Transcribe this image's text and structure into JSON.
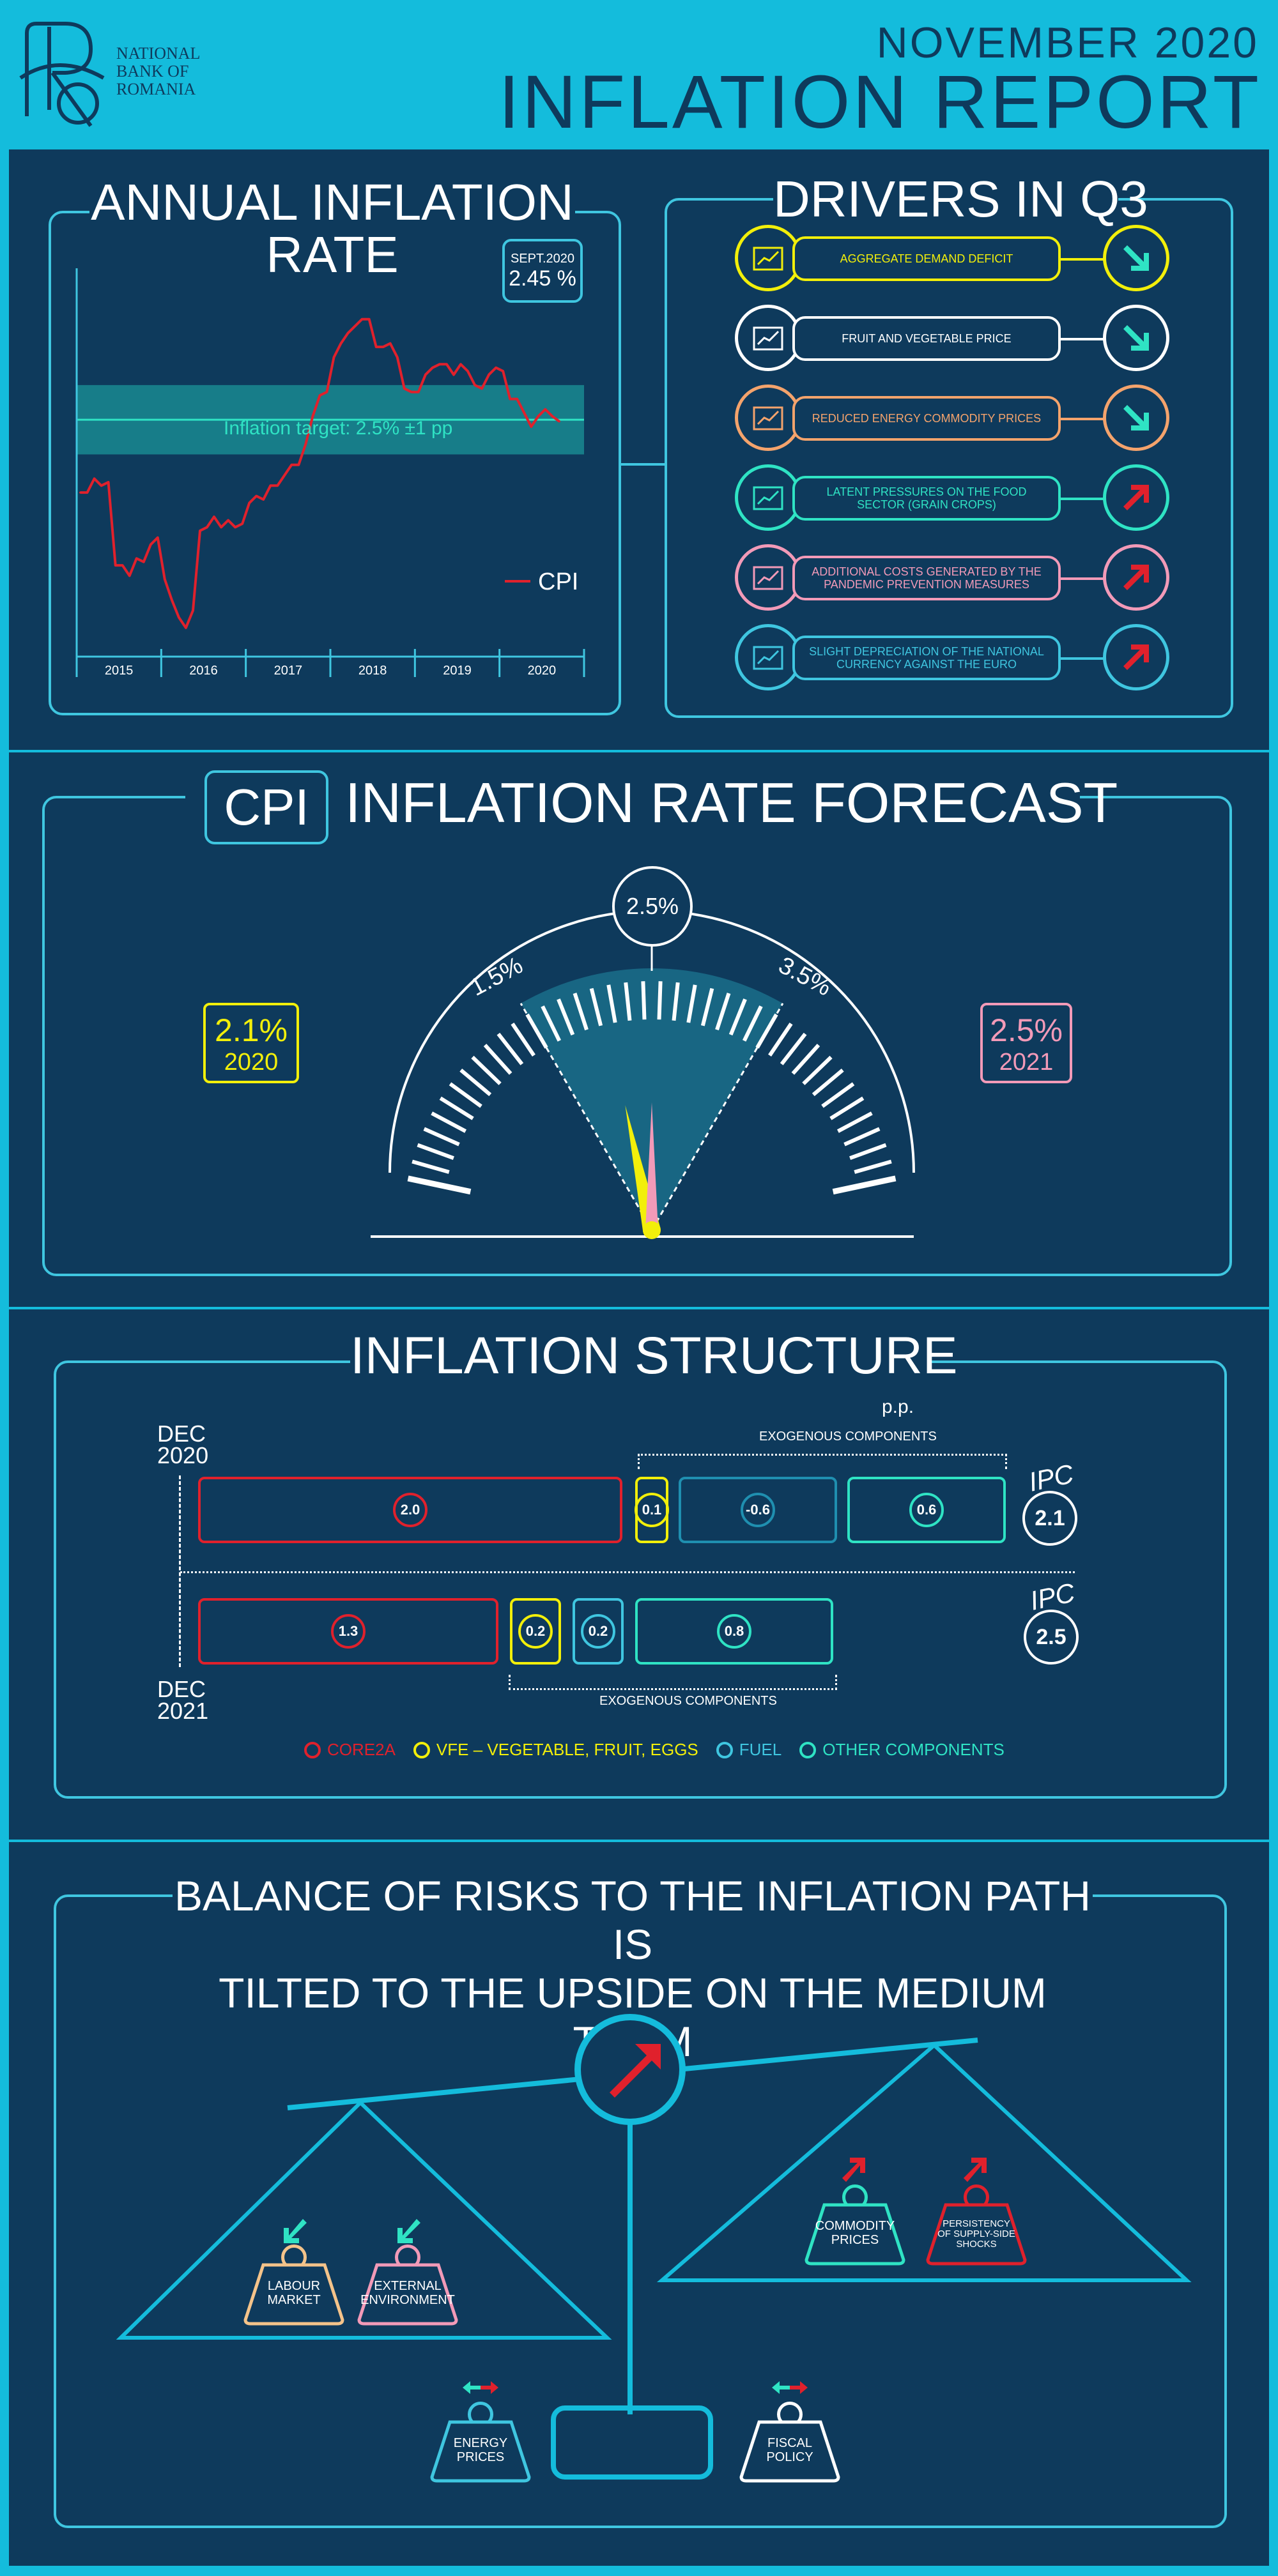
{
  "header": {
    "bank_name": [
      "NATIONAL",
      "BANK OF",
      "ROMANIA"
    ],
    "date": "NOVEMBER 2020",
    "title": "INFLATION REPORT"
  },
  "annual": {
    "title": [
      "ANNUAL INFLATION",
      "RATE"
    ],
    "badge_label": "SEPT.2020",
    "badge_value": "2.45 %",
    "target_label": "Inflation target: 2.5% ±1 pp",
    "legend": "CPI"
  },
  "chart_data": {
    "type": "line",
    "title": "ANNUAL INFLATION RATE",
    "xlabel": "",
    "ylabel": "",
    "x_ticks": [
      "2015",
      "2016",
      "2017",
      "2018",
      "2019",
      "2020"
    ],
    "series": [
      {
        "name": "CPI",
        "values": [
          [
            "2015-01",
            0.4
          ],
          [
            "2015-02",
            0.4
          ],
          [
            "2015-03",
            0.8
          ],
          [
            "2015-04",
            0.6
          ],
          [
            "2015-05",
            0.7
          ],
          [
            "2015-06",
            -1.7
          ],
          [
            "2015-07",
            -1.7
          ],
          [
            "2015-08",
            -2.0
          ],
          [
            "2015-09",
            -1.5
          ],
          [
            "2015-10",
            -1.6
          ],
          [
            "2015-11",
            -1.1
          ],
          [
            "2015-12",
            -0.9
          ],
          [
            "2016-01",
            -2.1
          ],
          [
            "2016-02",
            -2.7
          ],
          [
            "2016-03",
            -3.2
          ],
          [
            "2016-04",
            -3.5
          ],
          [
            "2016-05",
            -3.0
          ],
          [
            "2016-06",
            -0.7
          ],
          [
            "2016-07",
            -0.6
          ],
          [
            "2016-08",
            -0.3
          ],
          [
            "2016-09",
            -0.6
          ],
          [
            "2016-10",
            -0.4
          ],
          [
            "2016-11",
            -0.6
          ],
          [
            "2016-12",
            -0.5
          ],
          [
            "2017-01",
            0.1
          ],
          [
            "2017-02",
            0.3
          ],
          [
            "2017-03",
            0.2
          ],
          [
            "2017-04",
            0.6
          ],
          [
            "2017-05",
            0.6
          ],
          [
            "2017-06",
            0.9
          ],
          [
            "2017-07",
            1.2
          ],
          [
            "2017-08",
            1.2
          ],
          [
            "2017-09",
            1.8
          ],
          [
            "2017-10",
            2.6
          ],
          [
            "2017-11",
            3.2
          ],
          [
            "2017-12",
            3.3
          ],
          [
            "2018-01",
            4.3
          ],
          [
            "2018-02",
            4.7
          ],
          [
            "2018-03",
            5.0
          ],
          [
            "2018-04",
            5.2
          ],
          [
            "2018-05",
            5.4
          ],
          [
            "2018-06",
            5.4
          ],
          [
            "2018-07",
            4.6
          ],
          [
            "2018-08",
            4.6
          ],
          [
            "2018-09",
            4.7
          ],
          [
            "2018-10",
            4.3
          ],
          [
            "2018-11",
            3.4
          ],
          [
            "2018-12",
            3.3
          ],
          [
            "2019-01",
            3.3
          ],
          [
            "2019-02",
            3.8
          ],
          [
            "2019-03",
            4.0
          ],
          [
            "2019-04",
            4.1
          ],
          [
            "2019-05",
            4.1
          ],
          [
            "2019-06",
            3.8
          ],
          [
            "2019-07",
            4.1
          ],
          [
            "2019-08",
            3.9
          ],
          [
            "2019-09",
            3.5
          ],
          [
            "2019-10",
            3.4
          ],
          [
            "2019-11",
            3.8
          ],
          [
            "2019-12",
            4.0
          ],
          [
            "2020-01",
            3.9
          ],
          [
            "2020-02",
            3.1
          ],
          [
            "2020-03",
            3.1
          ],
          [
            "2020-04",
            2.7
          ],
          [
            "2020-05",
            2.3
          ],
          [
            "2020-06",
            2.6
          ],
          [
            "2020-07",
            2.8
          ],
          [
            "2020-08",
            2.6
          ],
          [
            "2020-09",
            2.45
          ]
        ]
      }
    ],
    "target": 2.5,
    "target_band": [
      1.5,
      3.5
    ],
    "ylim": [
      -4,
      6.5
    ],
    "grid": false
  },
  "drivers": {
    "title": "DRIVERS IN Q3",
    "items": [
      {
        "label": "AGGREGATE DEMAND DEFICIT",
        "color": "#f2ef0a",
        "trend": "down",
        "icon": "chart-icon"
      },
      {
        "label": "FRUIT AND VEGETABLE PRICE",
        "color": "#ffffff",
        "trend": "down",
        "icon": "vegetables-icon"
      },
      {
        "label": "REDUCED ENERGY COMMODITY PRICES",
        "color": "#f4a36c",
        "trend": "down",
        "icon": "energy-icon"
      },
      {
        "label": "LATENT PRESSURES ON THE FOOD SECTOR (GRAIN CROPS)",
        "color": "#2fe3c4",
        "trend": "up",
        "icon": "grain-icon"
      },
      {
        "label": "ADDITIONAL COSTS GENERATED BY THE PANDEMIC PREVENTION MEASURES",
        "color": "#f29ab8",
        "trend": "up",
        "icon": "virus-icon"
      },
      {
        "label": "SLIGHT DEPRECIATION OF THE NATIONAL CURRENCY AGAINST THE EURO",
        "color": "#3fc6e0",
        "trend": "up",
        "icon": "currency-icon"
      }
    ]
  },
  "forecast": {
    "badge": "CPI",
    "title": "INFLATION RATE FORECAST",
    "target": "2.5%",
    "lower": "1.5%",
    "upper": "3.5%",
    "left_value": "2.1%",
    "left_year": "2020",
    "right_value": "2.5%",
    "right_year": "2021",
    "left_color": "#f2ef0a",
    "right_color": "#f29ab8",
    "needle_2020": 2.1,
    "needle_2021": 2.5
  },
  "structure": {
    "title": "INFLATION STRUCTURE",
    "unit": "p.p.",
    "dec2020": [
      "DEC",
      "2020"
    ],
    "dec2021": [
      "DEC",
      "2021"
    ],
    "exo_label": "EXOGENOUS COMPONENTS",
    "row2020": [
      {
        "value": "2.0",
        "color": "#e0212c"
      },
      {
        "value": "0.1",
        "color": "#f2ef0a"
      },
      {
        "value": "-0.6",
        "color": "#1f8fb0"
      },
      {
        "value": "0.6",
        "color": "#2fe3c4"
      }
    ],
    "row2021": [
      {
        "value": "1.3",
        "color": "#e0212c"
      },
      {
        "value": "0.2",
        "color": "#f2ef0a"
      },
      {
        "value": "0.2",
        "color": "#3fc6e0"
      },
      {
        "value": "0.8",
        "color": "#2fe3c4"
      }
    ],
    "ipc_label": "IPC",
    "ipc2020": "2.1",
    "ipc2021": "2.5",
    "legend": [
      {
        "label": "CORE2A",
        "color": "#e0212c"
      },
      {
        "label": "VFE – VEGETABLE, FRUIT, EGGS",
        "color": "#f2ef0a"
      },
      {
        "label": "FUEL",
        "color": "#3fc6e0"
      },
      {
        "label": "OTHER COMPONENTS",
        "color": "#2fe3c4"
      }
    ]
  },
  "risks": {
    "title": [
      "BALANCE OF RISKS TO THE INFLATION PATH IS",
      "TILTED TO THE UPSIDE ON THE MEDIUM TERM"
    ],
    "left_weights": [
      {
        "label": [
          "LABOUR",
          "MARKET"
        ],
        "color": "#f4c38a"
      },
      {
        "label": [
          "EXTERNAL",
          "ENVIRONMENT"
        ],
        "color": "#f29ab8"
      }
    ],
    "right_weights": [
      {
        "label": [
          "COMMODITY",
          "PRICES"
        ],
        "color": "#2fe3c4"
      },
      {
        "label": [
          "PERSISTENCY",
          "OF SUPPLY-SIDE",
          "SHOCKS"
        ],
        "color": "#e0212c"
      }
    ],
    "bottom_weights": [
      {
        "label": [
          "ENERGY",
          "PRICES"
        ],
        "color": "#3fc6e0"
      },
      {
        "label": [
          "FISCAL",
          "POLICY"
        ],
        "color": "#ffffff"
      }
    ]
  }
}
